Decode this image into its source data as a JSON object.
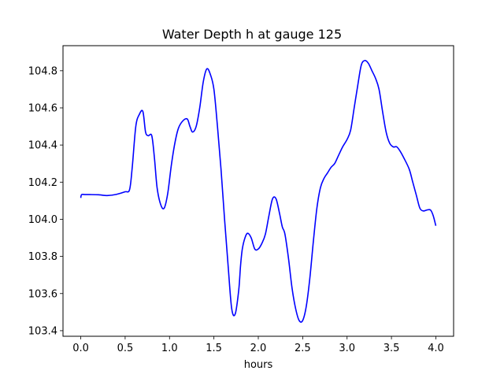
{
  "chart_data": {
    "type": "line",
    "title": "Water Depth h at gauge 125",
    "xlabel": "hours",
    "ylabel": "",
    "xlim": [
      -0.2,
      4.2
    ],
    "ylim": [
      103.37,
      104.935
    ],
    "xticks": [
      0.0,
      0.5,
      1.0,
      1.5,
      2.0,
      2.5,
      3.0,
      3.5,
      4.0
    ],
    "xtick_labels": [
      "0.0",
      "0.5",
      "1.0",
      "1.5",
      "2.0",
      "2.5",
      "3.0",
      "3.5",
      "4.0"
    ],
    "yticks": [
      103.4,
      103.6,
      103.8,
      104.0,
      104.2,
      104.4,
      104.6,
      104.8
    ],
    "ytick_labels": [
      "103.4",
      "103.6",
      "103.8",
      "104.0",
      "104.2",
      "104.4",
      "104.6",
      "104.8"
    ],
    "grid": false,
    "series": [
      {
        "color": "#0000ff",
        "x": [
          0.0,
          0.01,
          0.05,
          0.1,
          0.2,
          0.3,
          0.4,
          0.5,
          0.55,
          0.58,
          0.62,
          0.66,
          0.7,
          0.73,
          0.76,
          0.8,
          0.83,
          0.86,
          0.9,
          0.94,
          0.98,
          1.02,
          1.06,
          1.1,
          1.15,
          1.2,
          1.23,
          1.26,
          1.3,
          1.34,
          1.38,
          1.42,
          1.46,
          1.5,
          1.54,
          1.58,
          1.62,
          1.66,
          1.7,
          1.74,
          1.78,
          1.8,
          1.82,
          1.85,
          1.88,
          1.92,
          1.96,
          2.0,
          2.04,
          2.08,
          2.12,
          2.16,
          2.2,
          2.24,
          2.27,
          2.3,
          2.34,
          2.38,
          2.42,
          2.46,
          2.5,
          2.54,
          2.58,
          2.62,
          2.66,
          2.7,
          2.74,
          2.78,
          2.82,
          2.86,
          2.9,
          2.95,
          3.0,
          3.04,
          3.08,
          3.12,
          3.16,
          3.2,
          3.24,
          3.28,
          3.32,
          3.36,
          3.4,
          3.44,
          3.48,
          3.52,
          3.56,
          3.6,
          3.64,
          3.7,
          3.74,
          3.78,
          3.82,
          3.86,
          3.9,
          3.94,
          3.97,
          4.0
        ],
        "y": [
          104.115,
          104.133,
          104.133,
          104.133,
          104.132,
          104.128,
          104.134,
          104.148,
          104.16,
          104.28,
          104.5,
          104.565,
          104.58,
          104.47,
          104.45,
          104.45,
          104.33,
          104.17,
          104.08,
          104.06,
          104.14,
          104.29,
          104.41,
          104.49,
          104.53,
          104.54,
          104.5,
          104.47,
          104.5,
          104.6,
          104.74,
          104.81,
          104.78,
          104.7,
          104.5,
          104.27,
          104.0,
          103.75,
          103.52,
          103.49,
          103.62,
          103.75,
          103.84,
          103.9,
          103.925,
          103.9,
          103.84,
          103.84,
          103.87,
          103.92,
          104.02,
          104.11,
          104.11,
          104.03,
          103.96,
          103.92,
          103.79,
          103.63,
          103.52,
          103.455,
          103.455,
          103.53,
          103.68,
          103.88,
          104.06,
          104.17,
          104.22,
          104.25,
          104.28,
          104.3,
          104.34,
          104.39,
          104.43,
          104.48,
          104.6,
          104.72,
          104.83,
          104.855,
          104.84,
          104.8,
          104.76,
          104.7,
          104.58,
          104.47,
          104.41,
          104.39,
          104.39,
          104.365,
          104.33,
          104.27,
          104.2,
          104.13,
          104.06,
          104.045,
          104.05,
          104.05,
          104.02,
          103.965
        ]
      }
    ]
  }
}
